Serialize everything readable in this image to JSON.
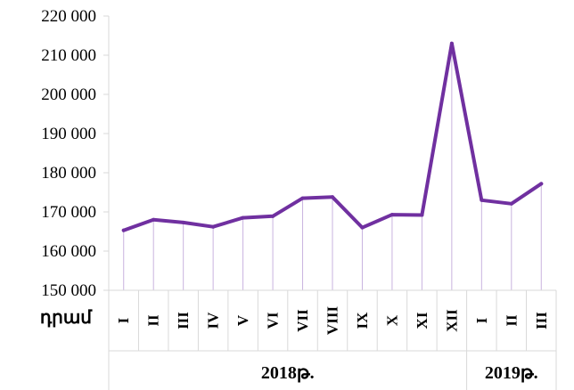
{
  "chart_data": {
    "type": "line",
    "unit_label": "դրամ",
    "categories": [
      "I",
      "II",
      "III",
      "IV",
      "V",
      "VI",
      "VII",
      "VIII",
      "IX",
      "X",
      "XI",
      "XII",
      "I",
      "II",
      "III"
    ],
    "values": [
      165300,
      168000,
      167300,
      166200,
      168500,
      168900,
      173500,
      173800,
      166000,
      169300,
      169200,
      213000,
      173000,
      172100,
      177200
    ],
    "year_groups": [
      {
        "label": "2018թ.",
        "count": 12
      },
      {
        "label": "2019թ.",
        "count": 3
      }
    ],
    "y_ticks": [
      "150 000",
      "160 000",
      "170 000",
      "180 000",
      "190 000",
      "200 000",
      "210 000",
      "220 000"
    ],
    "ylim": [
      150000,
      220000
    ],
    "line_color": "#7030a0",
    "drop_line_color": "#c9b3df",
    "grid": false
  }
}
